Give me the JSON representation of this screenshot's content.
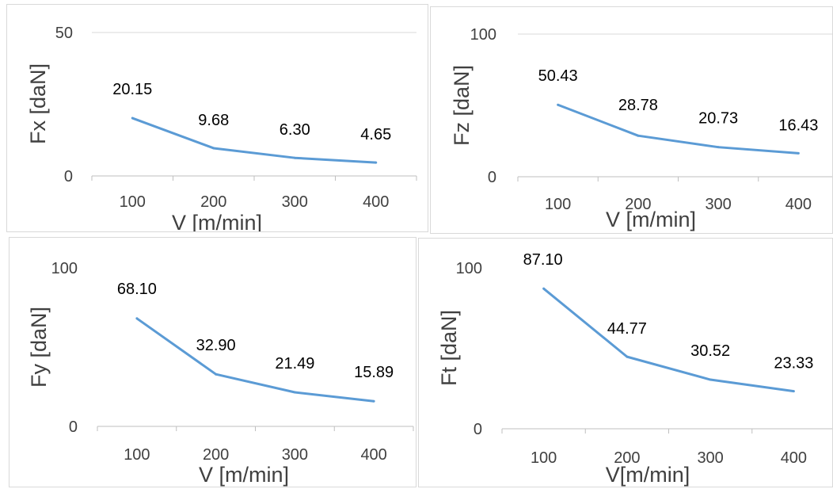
{
  "chart_data": [
    {
      "type": "line",
      "title": "",
      "xlabel": "V [m/min]",
      "ylabel": "Fx [daN]",
      "categories": [
        "100",
        "200",
        "300",
        "400"
      ],
      "values": [
        20.15,
        9.68,
        6.3,
        4.65
      ],
      "data_labels": [
        "20.15",
        "9.68",
        "6.30",
        "4.65"
      ],
      "yticks": [
        "0",
        "50"
      ],
      "ylim": [
        0,
        50
      ],
      "grid": true,
      "line_color": "#5b9bd5"
    },
    {
      "type": "line",
      "title": "",
      "xlabel": "V [m/min]",
      "ylabel": "Fz [daN]",
      "categories": [
        "100",
        "200",
        "300",
        "400"
      ],
      "values": [
        50.43,
        28.78,
        20.73,
        16.43
      ],
      "data_labels": [
        "50.43",
        "28.78",
        "20.73",
        "16.43"
      ],
      "yticks": [
        "0",
        "100"
      ],
      "ylim": [
        0,
        100
      ],
      "grid": true,
      "line_color": "#5b9bd5"
    },
    {
      "type": "line",
      "title": "",
      "xlabel": "V [m/min]",
      "ylabel": "Fy [daN]",
      "categories": [
        "100",
        "200",
        "300",
        "400"
      ],
      "values": [
        68.1,
        32.9,
        21.49,
        15.89
      ],
      "data_labels": [
        "68.10",
        "32.90",
        "21.49",
        "15.89"
      ],
      "yticks": [
        "0",
        "100"
      ],
      "ylim": [
        0,
        100
      ],
      "grid": false,
      "line_color": "#5b9bd5"
    },
    {
      "type": "line",
      "title": "",
      "xlabel": "V[m/min]",
      "ylabel": "Ft [daN]",
      "categories": [
        "100",
        "200",
        "300",
        "400"
      ],
      "values": [
        87.1,
        44.77,
        30.52,
        23.33
      ],
      "data_labels": [
        "87.10",
        "44.77",
        "30.52",
        "23.33"
      ],
      "yticks": [
        "0",
        "100"
      ],
      "ylim": [
        0,
        100
      ],
      "grid": false,
      "line_color": "#5b9bd5"
    }
  ]
}
